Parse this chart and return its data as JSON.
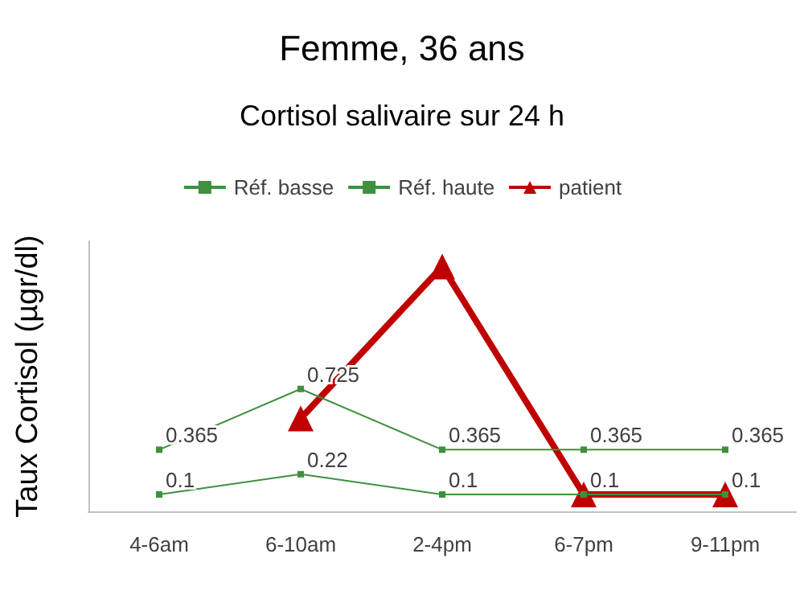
{
  "chart_data": {
    "type": "line",
    "title": "Femme, 36 ans",
    "subtitle": "Cortisol salivaire sur 24 h",
    "ylabel": "Taux Cortisol (µgr/dl)",
    "categories": [
      "4-6am",
      "6-10am",
      "2-4pm",
      "6-7pm",
      "9-11pm"
    ],
    "ylim": [
      0,
      1.6
    ],
    "tick_labels": "x",
    "grid": false,
    "legend": "top",
    "series": [
      {
        "name": "Réf. basse",
        "color": "#3f8f3f",
        "marker": "square",
        "values": [
          0.1,
          0.22,
          0.1,
          0.1,
          0.1
        ],
        "value_labels": [
          "0.1",
          "0.22",
          "0.1",
          "0.1",
          "0.1"
        ]
      },
      {
        "name": "Réf. haute",
        "color": "#3f8f3f",
        "marker": "square",
        "values": [
          0.365,
          0.725,
          0.365,
          0.365,
          0.365
        ],
        "value_labels": [
          "0.365",
          "0.725",
          "0.365",
          "0.365",
          "0.365"
        ]
      },
      {
        "name": "patient",
        "color": "#c00000",
        "marker": "triangle",
        "values": [
          null,
          0.55,
          1.45,
          0.1,
          0.1
        ]
      }
    ]
  }
}
